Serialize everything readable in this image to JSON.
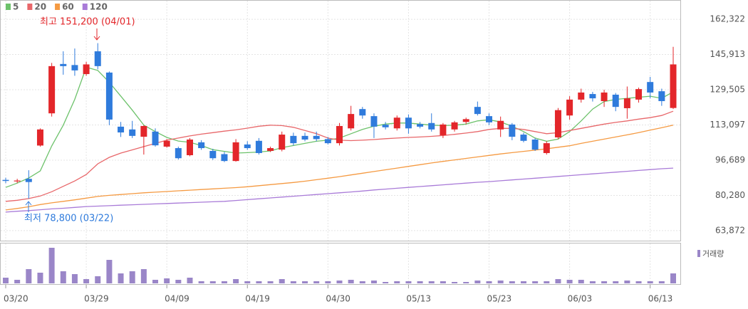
{
  "chart_data": {
    "type": "candlestick",
    "categories": [
      "03/20",
      null,
      null,
      null,
      null,
      null,
      null,
      "03/29",
      null,
      null,
      null,
      null,
      null,
      null,
      "04/09",
      null,
      null,
      null,
      null,
      null,
      null,
      "04/19",
      null,
      null,
      null,
      null,
      null,
      null,
      "04/30",
      null,
      null,
      null,
      null,
      null,
      null,
      "05/13",
      null,
      null,
      null,
      null,
      null,
      null,
      "05/23",
      null,
      null,
      null,
      null,
      null,
      null,
      "06/03",
      null,
      null,
      null,
      null,
      null,
      null,
      "06/13",
      null,
      null
    ],
    "open": [
      87500,
      86800,
      88000,
      103500,
      118500,
      141500,
      141000,
      136800,
      147400,
      137500,
      112300,
      111000,
      107600,
      110000,
      103000,
      102300,
      99000,
      105000,
      101000,
      99500,
      96300,
      104000,
      105700,
      101000,
      101600,
      108000,
      108000,
      108000,
      106500,
      104600,
      111500,
      120500,
      117200,
      113200,
      111500,
      116500,
      113500,
      114000,
      108300,
      111000,
      114500,
      121500,
      117200,
      111000,
      113300,
      108600,
      106300,
      100000,
      107300,
      117500,
      124900,
      127500,
      124200,
      127200,
      120900,
      124900,
      133100,
      128800,
      121000
    ],
    "high": [
      88500,
      88000,
      92000,
      111500,
      142000,
      147400,
      148700,
      142500,
      151200,
      138000,
      114500,
      115000,
      113000,
      111500,
      106500,
      103000,
      107000,
      106000,
      102000,
      100500,
      106500,
      105500,
      107000,
      103000,
      110000,
      109500,
      109500,
      110000,
      107500,
      114000,
      122000,
      121500,
      118500,
      114500,
      117500,
      118000,
      114500,
      118500,
      114000,
      115000,
      116500,
      124000,
      118500,
      117000,
      114000,
      109500,
      107000,
      105500,
      121000,
      126500,
      130000,
      128500,
      129500,
      128000,
      131000,
      130500,
      135500,
      130000,
      149500
    ],
    "low": [
      86000,
      86000,
      78800,
      103000,
      117000,
      136500,
      136000,
      136000,
      139000,
      113000,
      107500,
      107000,
      99300,
      103000,
      102500,
      97000,
      98500,
      101500,
      96800,
      95800,
      96000,
      101500,
      99300,
      100500,
      100800,
      103500,
      105500,
      105500,
      104000,
      103500,
      110500,
      116000,
      107000,
      111000,
      110500,
      109000,
      111500,
      110000,
      107000,
      110000,
      113500,
      117500,
      113000,
      107500,
      106000,
      105000,
      101000,
      99300,
      106500,
      115500,
      123500,
      124000,
      121500,
      119500,
      116000,
      123500,
      125500,
      122000,
      120500
    ],
    "close": [
      87000,
      87200,
      86500,
      111000,
      140500,
      140500,
      138500,
      141300,
      140500,
      115600,
      109600,
      108000,
      112600,
      103600,
      105700,
      97600,
      106300,
      102300,
      97600,
      96300,
      105000,
      102300,
      100000,
      102300,
      108600,
      104600,
      106300,
      106500,
      104600,
      112600,
      118200,
      117500,
      112300,
      112000,
      116500,
      111500,
      112300,
      111000,
      113300,
      114300,
      115800,
      118200,
      114300,
      115000,
      107600,
      105700,
      101600,
      104600,
      120000,
      124900,
      128200,
      125500,
      128200,
      121500,
      125500,
      129800,
      128200,
      124200,
      141300
    ],
    "up_color": "#e3262a",
    "down_color": "#2f7bdc",
    "ylim": [
      59200,
      171300
    ],
    "yticks": [
      {
        "value": 162322,
        "label": "162,322"
      },
      {
        "value": 145913,
        "label": "145,913"
      },
      {
        "value": 129505,
        "label": "129,505"
      },
      {
        "value": 113097,
        "label": "113,097"
      },
      {
        "value": 96689,
        "label": "96,689"
      },
      {
        "value": 80280,
        "label": "80,280"
      },
      {
        "value": 63872,
        "label": "63,872"
      }
    ],
    "grid": true,
    "series": [
      {
        "name": "5",
        "color": "#6dc26b",
        "values": [
          84000,
          86000,
          88400,
          91700,
          103300,
          113000,
          125000,
          140000,
          138500,
          133000,
          126500,
          120000,
          113000,
          110000,
          107300,
          105600,
          105000,
          103500,
          101600,
          100800,
          100000,
          100200,
          100500,
          101000,
          102500,
          103500,
          104500,
          105500,
          106000,
          107000,
          109000,
          111000,
          112500,
          113500,
          114000,
          114000,
          113500,
          113000,
          112800,
          113000,
          113500,
          115000,
          115500,
          114500,
          112500,
          110000,
          107000,
          105500,
          106500,
          110000,
          115000,
          120500,
          124000,
          125000,
          125500,
          126000,
          126500,
          125500,
          128500
        ]
      },
      {
        "name": "20",
        "color": "#e8676a",
        "values": [
          77500,
          78000,
          78800,
          80000,
          82000,
          84500,
          87000,
          90000,
          95000,
          98000,
          100000,
          101500,
          103000,
          104500,
          106000,
          107000,
          108000,
          108800,
          109500,
          110200,
          110800,
          111600,
          112500,
          113000,
          112800,
          112000,
          110500,
          109000,
          107000,
          106000,
          105800,
          106000,
          106300,
          106700,
          107000,
          107300,
          107500,
          107800,
          108200,
          108700,
          109300,
          110000,
          111000,
          111500,
          111500,
          111000,
          110000,
          109000,
          109500,
          110500,
          111500,
          112500,
          113500,
          114300,
          115000,
          115800,
          116500,
          117500,
          119500
        ]
      },
      {
        "name": "60",
        "color": "#f59a42",
        "values": [
          73500,
          74200,
          75000,
          76000,
          76800,
          77500,
          78200,
          79000,
          79800,
          80300,
          80700,
          81100,
          81500,
          81800,
          82100,
          82400,
          82700,
          83000,
          83300,
          83600,
          83900,
          84300,
          84800,
          85300,
          85800,
          86300,
          86900,
          87600,
          88300,
          89000,
          89800,
          90600,
          91400,
          92200,
          93000,
          93800,
          94600,
          95400,
          96100,
          96800,
          97500,
          98200,
          98900,
          99600,
          100200,
          100800,
          101400,
          102000,
          102700,
          103400,
          104500,
          105500,
          106500,
          107500,
          108500,
          109500,
          110700,
          111800,
          113000
        ]
      },
      {
        "name": "120",
        "color": "#a97bd8",
        "values": [
          72500,
          72900,
          73200,
          73600,
          74000,
          74300,
          74700,
          75100,
          75300,
          75500,
          75700,
          75900,
          76100,
          76300,
          76500,
          76700,
          76900,
          77100,
          77300,
          77500,
          77900,
          78300,
          78700,
          79100,
          79500,
          79900,
          80300,
          80700,
          81100,
          81500,
          81900,
          82300,
          82800,
          83200,
          83600,
          84000,
          84400,
          84800,
          85200,
          85600,
          86000,
          86400,
          86700,
          87100,
          87500,
          87900,
          88300,
          88700,
          89100,
          89500,
          89900,
          90300,
          90700,
          91100,
          91500,
          91900,
          92300,
          92700,
          93000
        ]
      }
    ],
    "volume": {
      "name": "거래량",
      "color": "#9a86c8",
      "values": [
        800000,
        500000,
        2000000,
        1500000,
        5000000,
        1700000,
        1300000,
        600000,
        1000000,
        3300000,
        1400000,
        1700000,
        2000000,
        500000,
        700000,
        500000,
        800000,
        300000,
        300000,
        300000,
        600000,
        300000,
        300000,
        300000,
        600000,
        300000,
        300000,
        300000,
        300000,
        400000,
        500000,
        300000,
        400000,
        200000,
        300000,
        300000,
        300000,
        300000,
        300000,
        200000,
        200000,
        400000,
        300000,
        400000,
        300000,
        300000,
        300000,
        300000,
        600000,
        500000,
        500000,
        300000,
        300000,
        300000,
        400000,
        300000,
        300000,
        300000,
        1400000
      ]
    },
    "annotations": [
      "최고 151,200 (04/01)",
      "최저 78,800 (03/22)"
    ]
  }
}
